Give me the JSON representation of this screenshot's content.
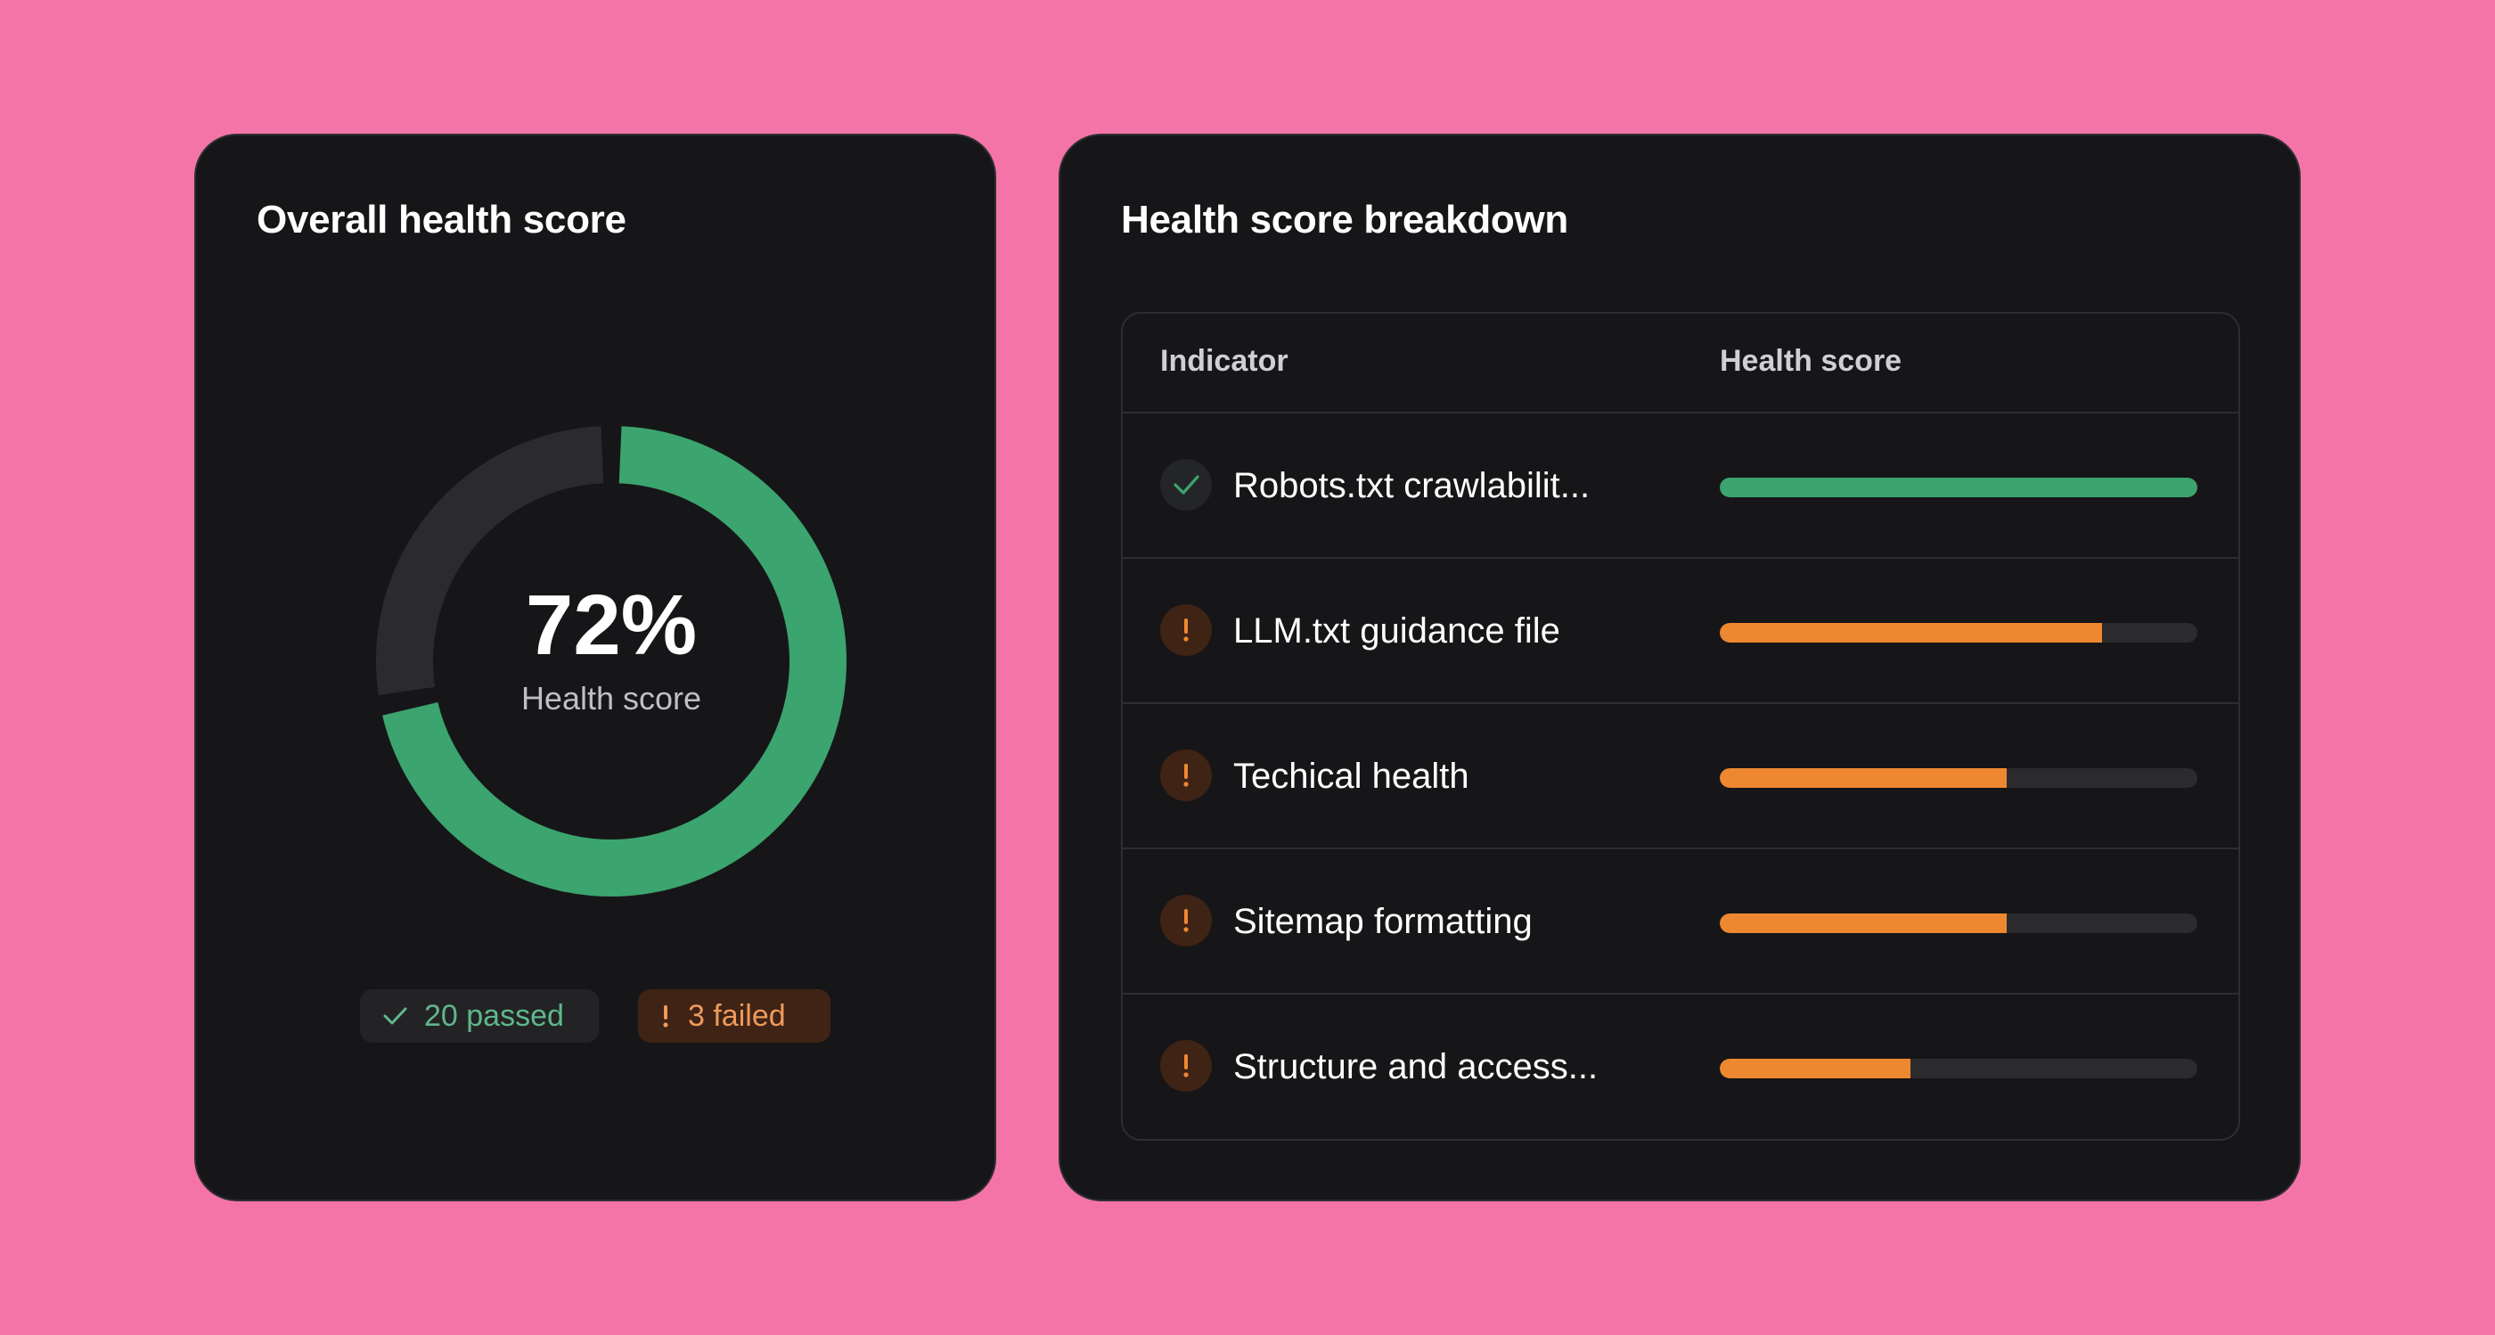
{
  "colors": {
    "background": "#f574a8",
    "card": "#161618",
    "success": "#3ba46f",
    "warning": "#ee8830",
    "track": "#2b2b2e"
  },
  "overall": {
    "title": "Overall health score",
    "score_percent": 72,
    "score_text": "72%",
    "score_label": "Health score",
    "passed_label": "20 passed",
    "failed_label": "3 failed"
  },
  "breakdown": {
    "title": "Health score breakdown",
    "columns": {
      "indicator": "Indicator",
      "score": "Health score"
    },
    "rows": [
      {
        "label": "Robots.txt crawlabilit...",
        "status": "pass",
        "status_icon": "check-icon",
        "score": 1.0
      },
      {
        "label": "LLM.txt guidance file",
        "status": "warn",
        "status_icon": "exclamation-icon",
        "score": 0.8
      },
      {
        "label": "Techical health",
        "status": "warn",
        "status_icon": "exclamation-icon",
        "score": 0.6
      },
      {
        "label": "Sitemap formatting",
        "status": "warn",
        "status_icon": "exclamation-icon",
        "score": 0.6
      },
      {
        "label": "Structure and access...",
        "status": "warn",
        "status_icon": "exclamation-icon",
        "score": 0.4
      }
    ]
  }
}
